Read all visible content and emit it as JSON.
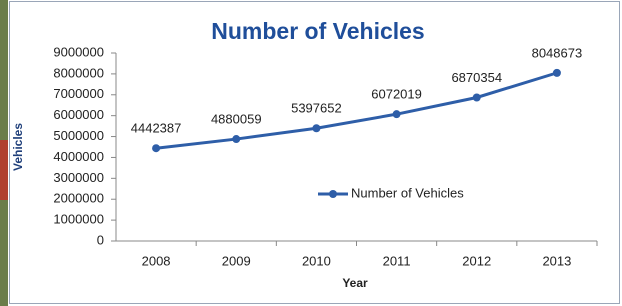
{
  "chart_data": {
    "type": "line",
    "title": "Number of Vehicles",
    "x_label": "Year",
    "y_label": "Vehicles",
    "categories": [
      "2008",
      "2009",
      "2010",
      "2011",
      "2012",
      "2013"
    ],
    "series": [
      {
        "name": "Number of Vehicles",
        "color": "#2e5ea8",
        "values": [
          4442387,
          4880059,
          5397652,
          6072019,
          6870354,
          8048673
        ]
      }
    ],
    "ylim": [
      0,
      9000000
    ],
    "yticks": [
      0,
      1000000,
      2000000,
      3000000,
      4000000,
      5000000,
      6000000,
      7000000,
      8000000,
      9000000
    ],
    "legend": "center",
    "data_labels": true
  }
}
